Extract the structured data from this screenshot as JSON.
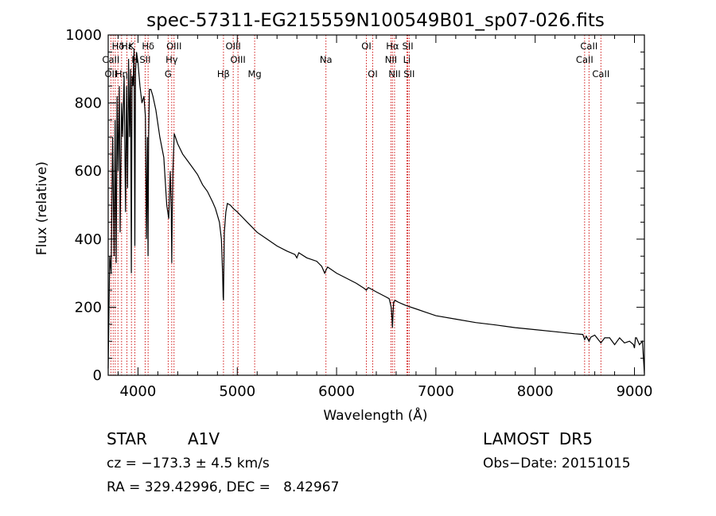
{
  "chart_data": {
    "type": "line",
    "title": "spec-57311-EG215559N100549B01_sp07-026.fits",
    "xlabel": "Wavelength (Å)",
    "ylabel": "Flux (relative)",
    "xlim": [
      3700,
      9100
    ],
    "ylim": [
      0,
      1000
    ],
    "x_ticks": [
      4000,
      5000,
      6000,
      7000,
      8000,
      9000
    ],
    "y_ticks": [
      0,
      200,
      400,
      600,
      800,
      1000
    ],
    "grid": false,
    "series": [
      {
        "x": [
          3700,
          3715,
          3730,
          3745,
          3760,
          3770,
          3780,
          3790,
          3800,
          3812,
          3820,
          3835,
          3845,
          3860,
          3875,
          3885,
          3895,
          3905,
          3915,
          3925,
          3933,
          3940,
          3950,
          3960,
          3968,
          3975,
          3985,
          4000,
          4020,
          4040,
          4060,
          4075,
          4085,
          4095,
          4101,
          4107,
          4115,
          4130,
          4150,
          4180,
          4220,
          4260,
          4290,
          4310,
          4325,
          4335,
          4340,
          4345,
          4352,
          4365,
          4400,
          4450,
          4500,
          4550,
          4600,
          4650,
          4700,
          4750,
          4780,
          4800,
          4820,
          4840,
          4852,
          4858,
          4861,
          4864,
          4870,
          4885,
          4900,
          4930,
          4960,
          5000,
          5050,
          5100,
          5150,
          5200,
          5300,
          5400,
          5500,
          5580,
          5600,
          5620,
          5700,
          5800,
          5850,
          5880,
          5895,
          5910,
          5950,
          6000,
          6100,
          6200,
          6280,
          6300,
          6320,
          6400,
          6500,
          6530,
          6550,
          6558,
          6563,
          6568,
          6575,
          6590,
          6620,
          6700,
          6800,
          6900,
          7000,
          7200,
          7400,
          7600,
          7800,
          8000,
          8200,
          8400,
          8480,
          8498,
          8515,
          8542,
          8560,
          8600,
          8662,
          8700,
          8750,
          8800,
          8850,
          8900,
          8950,
          8990,
          9000,
          9010,
          9020,
          9050,
          9080,
          9100
        ],
        "y": [
          20,
          350,
          300,
          700,
          350,
          750,
          330,
          820,
          600,
          850,
          420,
          800,
          700,
          880,
          480,
          850,
          550,
          930,
          700,
          900,
          300,
          880,
          850,
          960,
          380,
          890,
          950,
          920,
          850,
          800,
          820,
          760,
          400,
          700,
          350,
          700,
          840,
          840,
          820,
          780,
          700,
          640,
          500,
          460,
          600,
          480,
          330,
          480,
          600,
          710,
          680,
          650,
          630,
          610,
          590,
          560,
          540,
          510,
          490,
          470,
          450,
          400,
          300,
          230,
          220,
          300,
          420,
          480,
          505,
          500,
          490,
          480,
          465,
          450,
          435,
          420,
          400,
          380,
          365,
          355,
          345,
          360,
          345,
          335,
          320,
          300,
          310,
          318,
          310,
          300,
          285,
          270,
          255,
          250,
          258,
          245,
          230,
          225,
          200,
          170,
          140,
          180,
          215,
          220,
          215,
          205,
          195,
          185,
          175,
          165,
          155,
          148,
          140,
          134,
          128,
          122,
          120,
          105,
          115,
          100,
          112,
          118,
          95,
          110,
          110,
          90,
          110,
          95,
          100,
          90,
          80,
          110,
          110,
          90,
          100,
          5
        ]
      }
    ],
    "annotations": [
      {
        "text": "Hδ",
        "x": 3800,
        "row": 1
      },
      {
        "text": "Hε",
        "x": 3889,
        "row": 1
      },
      {
        "text": "K",
        "x": 3934,
        "row": 1
      },
      {
        "text": "Hδ",
        "x": 4102,
        "row": 1
      },
      {
        "text": "OIII",
        "x": 4363,
        "row": 1
      },
      {
        "text": "OIII",
        "x": 4959,
        "row": 1
      },
      {
        "text": "OI",
        "x": 6300,
        "row": 1
      },
      {
        "text": "Hα",
        "x": 6563,
        "row": 1
      },
      {
        "text": "SII",
        "x": 6717,
        "row": 1
      },
      {
        "text": "CaII",
        "x": 8542,
        "row": 1
      },
      {
        "text": "CaII",
        "x": 3727,
        "row": 2
      },
      {
        "text": "H",
        "x": 3969,
        "row": 2
      },
      {
        "text": "SII",
        "x": 4072,
        "row": 2
      },
      {
        "text": "Hγ",
        "x": 4340,
        "row": 2
      },
      {
        "text": "OIII",
        "x": 5007,
        "row": 2
      },
      {
        "text": "Na",
        "x": 5893,
        "row": 2
      },
      {
        "text": "NII",
        "x": 6548,
        "row": 2
      },
      {
        "text": "Li",
        "x": 6708,
        "row": 2
      },
      {
        "text": "CaII",
        "x": 8498,
        "row": 2
      },
      {
        "text": "OII",
        "x": 3727,
        "row": 3
      },
      {
        "text": "Hη",
        "x": 3835,
        "row": 3
      },
      {
        "text": "G",
        "x": 4304,
        "row": 3
      },
      {
        "text": "Hβ",
        "x": 4861,
        "row": 3
      },
      {
        "text": "Mg",
        "x": 5175,
        "row": 3
      },
      {
        "text": "OI",
        "x": 6364,
        "row": 3
      },
      {
        "text": "NII",
        "x": 6584,
        "row": 3
      },
      {
        "text": "SII",
        "x": 6731,
        "row": 3
      },
      {
        "text": "CaII",
        "x": 8662,
        "row": 3
      }
    ],
    "line_markers": [
      3727,
      3750,
      3771,
      3798,
      3835,
      3889,
      3934,
      3969,
      4072,
      4102,
      4304,
      4340,
      4363,
      4861,
      4959,
      5007,
      5175,
      5893,
      6300,
      6364,
      6548,
      6563,
      6584,
      6708,
      6717,
      6731,
      8498,
      8542,
      8662
    ],
    "marker_color": "#cc0000",
    "line_color": "#000000"
  },
  "info": {
    "object_type": "STAR",
    "subclass": "A1V",
    "survey": "LAMOST  DR5",
    "cz": "cz = −173.3 ± 4.5 km/s",
    "obs_date": "Obs−Date: 20151015",
    "coords": "RA = 329.42996, DEC =   8.42967"
  }
}
